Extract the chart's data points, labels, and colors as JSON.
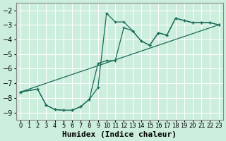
{
  "xlabel": "Humidex (Indice chaleur)",
  "background_color": "#cceedd",
  "grid_color": "#ffffff",
  "line_color": "#1a6b5a",
  "xlim": [
    -0.5,
    23.5
  ],
  "ylim": [
    -9.5,
    -1.5
  ],
  "xticks": [
    0,
    1,
    2,
    3,
    4,
    5,
    6,
    7,
    8,
    9,
    10,
    11,
    12,
    13,
    14,
    15,
    16,
    17,
    18,
    19,
    20,
    21,
    22,
    23
  ],
  "yticks": [
    -9,
    -8,
    -7,
    -6,
    -5,
    -4,
    -3,
    -2
  ],
  "line1_x": [
    0,
    2,
    3,
    4,
    5,
    6,
    7,
    8,
    9,
    10,
    11,
    12,
    13,
    14,
    15,
    16,
    17,
    18,
    19,
    20,
    21,
    22,
    23
  ],
  "line1_y": [
    -7.6,
    -7.4,
    -8.5,
    -8.8,
    -8.85,
    -8.85,
    -8.6,
    -8.1,
    -7.3,
    -2.2,
    -2.8,
    -2.8,
    -3.4,
    -4.1,
    -4.4,
    -3.55,
    -3.7,
    -2.55,
    -2.7,
    -2.85,
    -2.85,
    -2.85,
    -3.0
  ],
  "line2_x": [
    0,
    2,
    3,
    4,
    5,
    6,
    7,
    8,
    9,
    10,
    11,
    12,
    13,
    14,
    15,
    16,
    17,
    18,
    19,
    20,
    21,
    22,
    23
  ],
  "line2_y": [
    -7.6,
    -7.4,
    -8.5,
    -8.8,
    -8.85,
    -8.85,
    -8.6,
    -8.1,
    -5.65,
    -5.45,
    -5.45,
    -3.2,
    -3.4,
    -4.1,
    -4.4,
    -3.55,
    -3.7,
    -2.55,
    -2.7,
    -2.85,
    -2.85,
    -2.85,
    -3.0
  ],
  "line3_x": [
    0,
    23
  ],
  "line3_y": [
    -7.6,
    -3.0
  ],
  "font_size": 8
}
